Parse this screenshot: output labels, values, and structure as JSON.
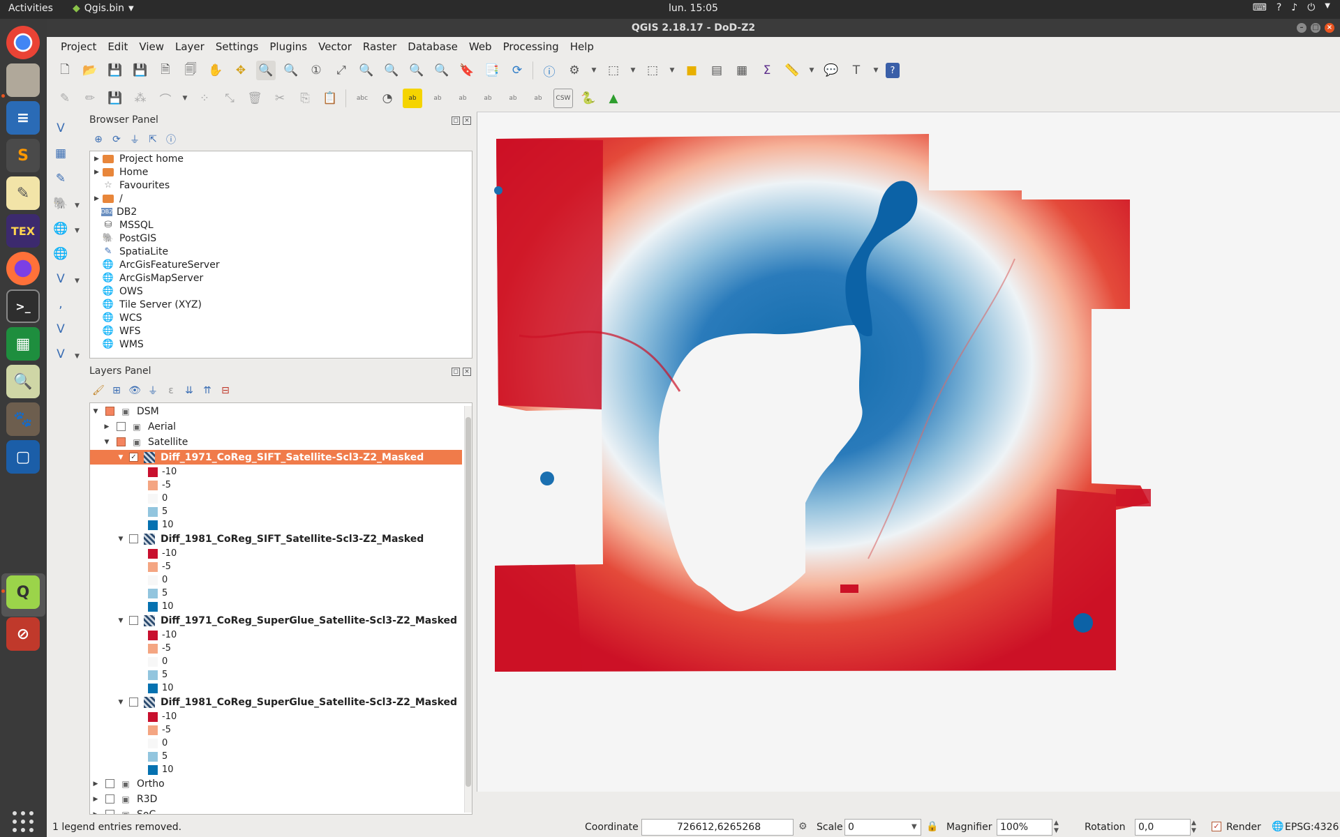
{
  "topbar": {
    "activities": "Activities",
    "app_name": "Qgis.bin",
    "clock": "lun. 15:05",
    "tray_icons": [
      "keyboard-icon",
      "accessibility-icon",
      "wifi-icon",
      "volume-icon",
      "power-icon"
    ]
  },
  "dock": {
    "apps": [
      "chrome-icon",
      "files-icon",
      "writer-icon",
      "sublime-icon",
      "text-editor-icon",
      "texmaker-icon",
      "firefox-icon",
      "terminal-icon",
      "calc-icon",
      "image-viewer-icon",
      "gimp-icon",
      "virtualbox-icon",
      "qgis-icon",
      "blocked-app-icon"
    ]
  },
  "window": {
    "title": "QGIS 2.18.17 - DoD-Z2"
  },
  "menubar": {
    "items": [
      "Project",
      "Edit",
      "View",
      "Layer",
      "Settings",
      "Plugins",
      "Vector",
      "Raster",
      "Database",
      "Web",
      "Processing",
      "Help"
    ]
  },
  "browser_panel": {
    "title": "Browser Panel",
    "items": [
      {
        "label": "Project home",
        "icon": "folder-icon",
        "expandable": true
      },
      {
        "label": "Home",
        "icon": "folder-icon",
        "expandable": true
      },
      {
        "label": "Favourites",
        "icon": "star-icon",
        "expandable": false
      },
      {
        "label": "/",
        "icon": "folder-icon",
        "expandable": true
      },
      {
        "label": "DB2",
        "icon": "db2-icon",
        "expandable": false
      },
      {
        "label": "MSSQL",
        "icon": "mssql-icon",
        "expandable": false
      },
      {
        "label": "PostGIS",
        "icon": "postgis-icon",
        "expandable": false
      },
      {
        "label": "SpatiaLite",
        "icon": "spatialite-icon",
        "expandable": false
      },
      {
        "label": "ArcGisFeatureServer",
        "icon": "globe-icon",
        "expandable": false
      },
      {
        "label": "ArcGisMapServer",
        "icon": "globe-icon",
        "expandable": false
      },
      {
        "label": "OWS",
        "icon": "globe-icon",
        "expandable": false
      },
      {
        "label": "Tile Server (XYZ)",
        "icon": "globe-icon",
        "expandable": false
      },
      {
        "label": "WCS",
        "icon": "globe-icon",
        "expandable": false
      },
      {
        "label": "WFS",
        "icon": "globe-icon",
        "expandable": false
      },
      {
        "label": "WMS",
        "icon": "globe-icon",
        "expandable": false
      }
    ]
  },
  "layers_panel": {
    "title": "Layers Panel",
    "groups": {
      "dsm": "DSM",
      "aerial": "Aerial",
      "satellite": "Satellite",
      "ortho": "Ortho",
      "r3d": "R3D",
      "soc": "SoC"
    },
    "layers": [
      {
        "name": "Diff_1971_CoReg_SIFT_Satellite-Scl3-Z2_Masked",
        "checked": true,
        "selected": true
      },
      {
        "name": "Diff_1981_CoReg_SIFT_Satellite-Scl3-Z2_Masked",
        "checked": false,
        "selected": false
      },
      {
        "name": "Diff_1971_CoReg_SuperGlue_Satellite-Scl3-Z2_Masked",
        "checked": false,
        "selected": false
      },
      {
        "name": "Diff_1981_CoReg_SuperGlue_Satellite-Scl3-Z2_Masked",
        "checked": false,
        "selected": false
      }
    ],
    "legend": [
      {
        "label": "-10",
        "color": "#c8102e"
      },
      {
        "label": "-5",
        "color": "#f4a582"
      },
      {
        "label": "0",
        "color": "#f7f7f7"
      },
      {
        "label": "5",
        "color": "#92c5de"
      },
      {
        "label": "10",
        "color": "#0571b0"
      }
    ]
  },
  "statusbar": {
    "message": "1 legend entries removed.",
    "coordinate_label": "Coordinate",
    "coordinate_value": "726612,6265268",
    "scale_label": "Scale",
    "scale_value": "0",
    "magnifier_label": "Magnifier",
    "magnifier_value": "100%",
    "rotation_label": "Rotation",
    "rotation_value": "0,0",
    "render_label": "Render",
    "crs": "EPSG:4326"
  },
  "colors": {
    "selection": "#f07b4a",
    "diff_negative": "#c8102e",
    "diff_positive": "#0571b0"
  }
}
